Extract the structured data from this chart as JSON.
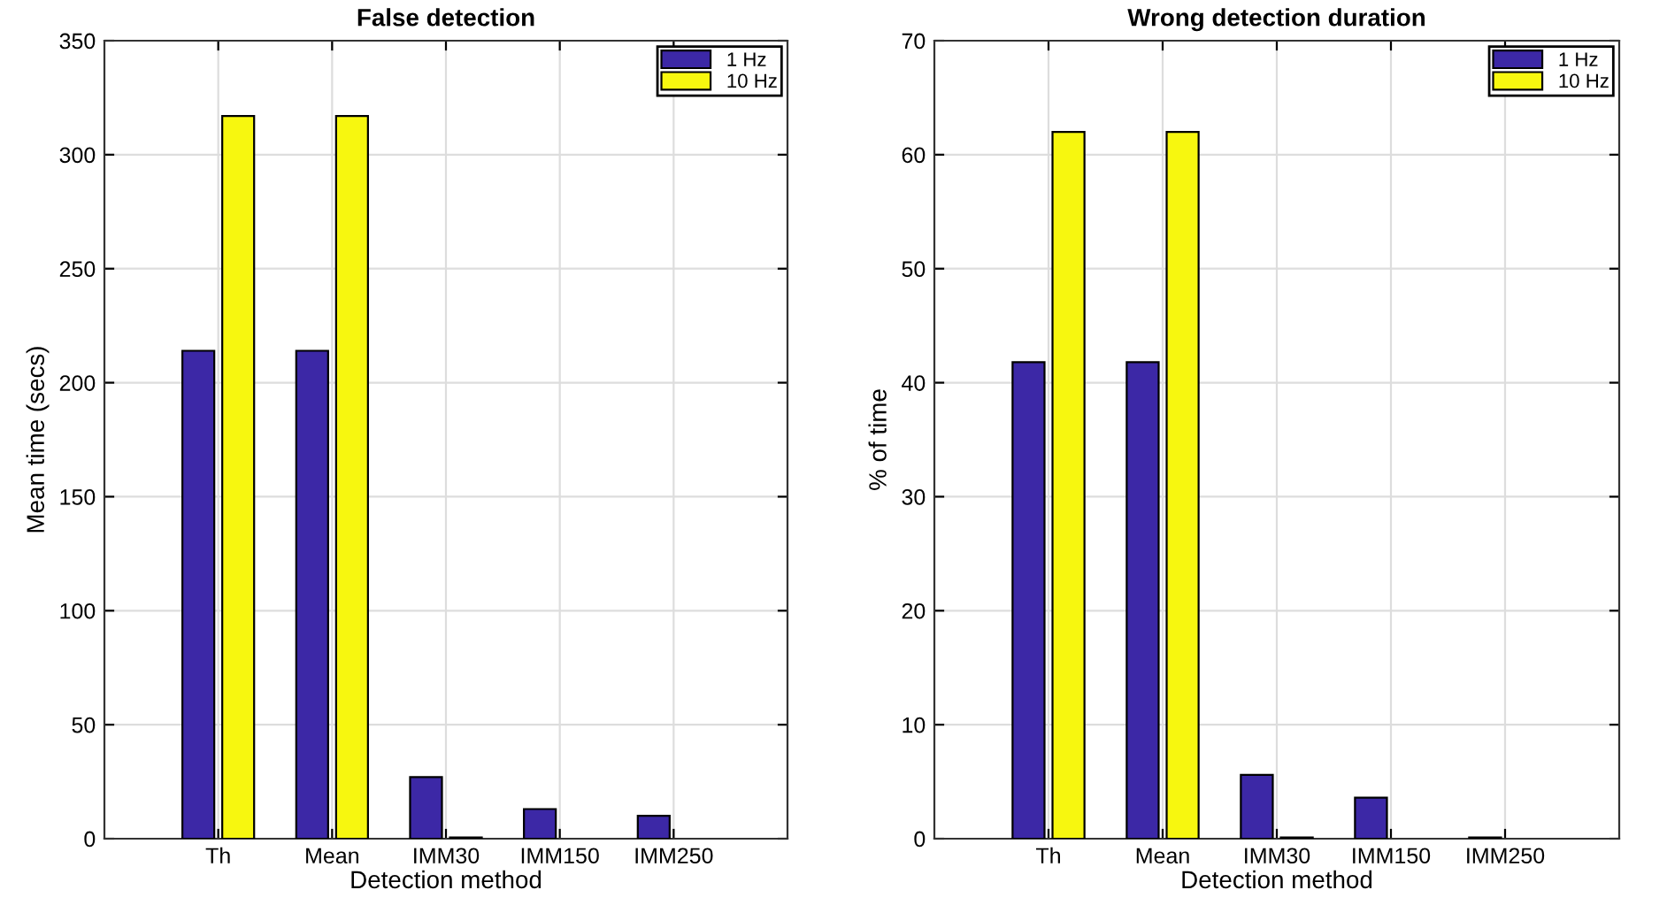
{
  "chart_data": [
    {
      "type": "bar",
      "title": "False detection",
      "xlabel": "Detection method",
      "ylabel": "Mean time (secs)",
      "categories": [
        "Th",
        "Mean",
        "IMM30",
        "IMM150",
        "IMM250"
      ],
      "series": [
        {
          "name": "1 Hz",
          "color": "#3c28a6",
          "values": [
            214,
            214,
            27,
            13,
            10
          ]
        },
        {
          "name": "10 Hz",
          "color": "#f7f70f",
          "values": [
            317,
            317,
            0.5,
            null,
            null
          ]
        }
      ],
      "ylim": [
        0,
        350
      ],
      "yticks": [
        0,
        50,
        100,
        150,
        200,
        250,
        300,
        350
      ],
      "grid": true,
      "legend": "top right"
    },
    {
      "type": "bar",
      "title": "Wrong detection duration",
      "xlabel": "Detection method",
      "ylabel": "% of time",
      "categories": [
        "Th",
        "Mean",
        "IMM30",
        "IMM150",
        "IMM250"
      ],
      "series": [
        {
          "name": "1 Hz",
          "color": "#3c28a6",
          "values": [
            41.8,
            41.8,
            5.6,
            3.6,
            0.1
          ]
        },
        {
          "name": "10 Hz",
          "color": "#f7f70f",
          "values": [
            62,
            62,
            0.1,
            null,
            null
          ]
        }
      ],
      "ylim": [
        0,
        70
      ],
      "yticks": [
        0,
        10,
        20,
        30,
        40,
        50,
        60,
        70
      ],
      "grid": true,
      "legend": "top right"
    }
  ]
}
